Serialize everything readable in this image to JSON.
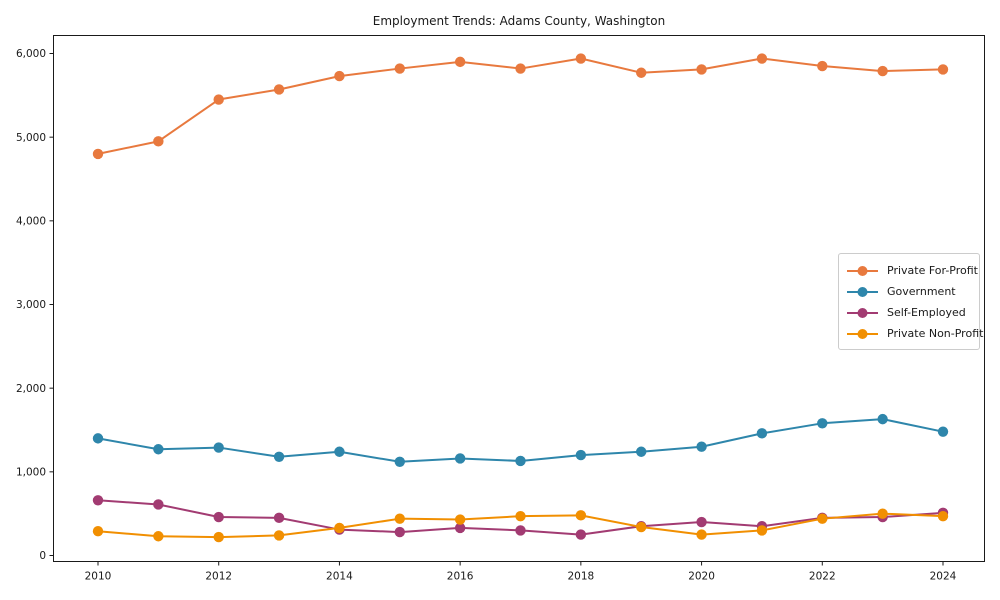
{
  "figure": {
    "background": "#ffffff",
    "axis_color": "#1a1a1a",
    "legend_border_color": "#cccccc"
  },
  "chart_data": {
    "type": "line",
    "title": "Employment Trends: Adams County, Washington",
    "xlabel": "",
    "ylabel": "",
    "grid": false,
    "legend_position": "center-right",
    "marker": "circle",
    "x": [
      2010,
      2011,
      2012,
      2013,
      2014,
      2015,
      2016,
      2017,
      2018,
      2019,
      2020,
      2021,
      2022,
      2023,
      2024
    ],
    "x_tick_labels": [
      "2010",
      "2012",
      "2014",
      "2016",
      "2018",
      "2020",
      "2022",
      "2024"
    ],
    "x_ticks": [
      2010,
      2012,
      2014,
      2016,
      2018,
      2020,
      2022,
      2024
    ],
    "y_ticks": [
      0,
      1000,
      2000,
      3000,
      4000,
      5000,
      6000
    ],
    "y_tick_labels": [
      "0",
      "1,000",
      "2,000",
      "3,000",
      "4,000",
      "5,000",
      "6,000"
    ],
    "xlim": [
      2009.3,
      2024.7
    ],
    "ylim": [
      -66,
      6222
    ],
    "series": [
      {
        "name": "Private For-Profit",
        "color": "#E8793E",
        "values": [
          4800,
          4950,
          5450,
          5570,
          5730,
          5820,
          5900,
          5820,
          5940,
          5770,
          5810,
          5940,
          5850,
          5790,
          5810
        ]
      },
      {
        "name": "Government",
        "color": "#2E86AB",
        "values": [
          1400,
          1270,
          1290,
          1180,
          1240,
          1120,
          1160,
          1130,
          1200,
          1240,
          1300,
          1460,
          1580,
          1630,
          1480
        ]
      },
      {
        "name": "Self-Employed",
        "color": "#A23B72",
        "values": [
          660,
          610,
          460,
          450,
          310,
          280,
          330,
          300,
          250,
          350,
          400,
          350,
          450,
          460,
          510
        ]
      },
      {
        "name": "Private Non-Profit",
        "color": "#F18F01",
        "values": [
          290,
          230,
          220,
          240,
          330,
          440,
          430,
          470,
          480,
          340,
          250,
          300,
          440,
          500,
          470
        ]
      }
    ]
  }
}
